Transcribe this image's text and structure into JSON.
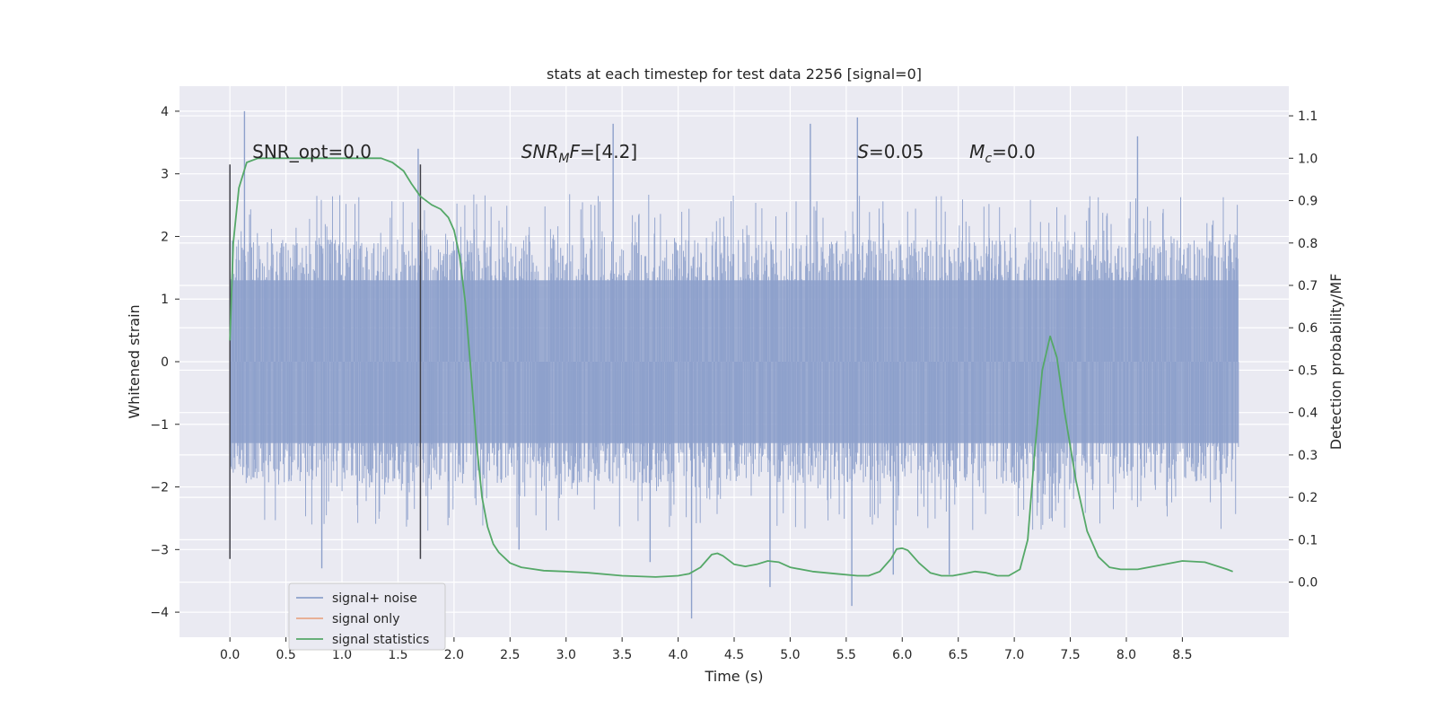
{
  "chart_data": {
    "type": "line",
    "title": "stats at each timestep for test data 2256 [signal=0]",
    "xlabel": "Time (s)",
    "ylabel": "Whitened strain",
    "y2label": "Detection probability/MF",
    "xlim": [
      -0.45,
      9.45
    ],
    "ylim": [
      -4.4,
      4.4
    ],
    "y2lim": [
      -0.13,
      1.17
    ],
    "xticks": [
      0.0,
      0.5,
      1.0,
      1.5,
      2.0,
      2.5,
      3.0,
      3.5,
      4.0,
      4.5,
      5.0,
      5.5,
      6.0,
      6.5,
      7.0,
      7.5,
      8.0,
      8.5
    ],
    "xtick_labels": [
      "0.0",
      "0.5",
      "1.0",
      "1.5",
      "2.0",
      "2.5",
      "3.0",
      "3.5",
      "4.0",
      "4.5",
      "5.0",
      "5.5",
      "6.0",
      "6.5",
      "7.0",
      "7.5",
      "8.0",
      "8.5"
    ],
    "yticks": [
      -4,
      -3,
      -2,
      -1,
      0,
      1,
      2,
      3,
      4
    ],
    "ytick_labels": [
      "−4",
      "−3",
      "−2",
      "−1",
      "0",
      "1",
      "2",
      "3",
      "4"
    ],
    "y2ticks": [
      0.0,
      0.1,
      0.2,
      0.3,
      0.4,
      0.5,
      0.6,
      0.7,
      0.8,
      0.9,
      1.0,
      1.1
    ],
    "y2tick_labels": [
      "0.0",
      "0.1",
      "0.2",
      "0.3",
      "0.4",
      "0.5",
      "0.6",
      "0.7",
      "0.8",
      "0.9",
      "1.0",
      "1.1"
    ],
    "grid": true,
    "legend_position": "lower-left",
    "series": [
      {
        "name": "signal+ noise",
        "color": "#8da0cb",
        "axis": "left",
        "x_range": [
          0.0,
          9.0
        ],
        "core_amplitude": 1.3,
        "typical_envelope": 1.9,
        "peaks": [
          {
            "x": 0.13,
            "y": 4.0
          },
          {
            "x": 0.82,
            "y": -3.3
          },
          {
            "x": 1.68,
            "y": 3.4
          },
          {
            "x": 2.58,
            "y": -3.0
          },
          {
            "x": 3.42,
            "y": 3.8
          },
          {
            "x": 3.75,
            "y": -3.2
          },
          {
            "x": 4.12,
            "y": -4.1
          },
          {
            "x": 4.82,
            "y": -3.6
          },
          {
            "x": 5.18,
            "y": 3.8
          },
          {
            "x": 5.55,
            "y": -3.9
          },
          {
            "x": 5.6,
            "y": 3.9
          },
          {
            "x": 5.92,
            "y": -3.4
          },
          {
            "x": 6.42,
            "y": -3.4
          },
          {
            "x": 8.1,
            "y": 3.6
          }
        ]
      },
      {
        "name": "signal only",
        "color": "#e8a888",
        "axis": "left",
        "x": [],
        "y": []
      },
      {
        "name": "signal statistics",
        "color": "#55a868",
        "axis": "right",
        "x": [
          0.0,
          0.03,
          0.08,
          0.15,
          0.25,
          0.4,
          0.6,
          0.8,
          1.0,
          1.2,
          1.35,
          1.45,
          1.55,
          1.62,
          1.7,
          1.8,
          1.88,
          1.95,
          2.0,
          2.05,
          2.1,
          2.15,
          2.2,
          2.25,
          2.3,
          2.35,
          2.4,
          2.5,
          2.6,
          2.8,
          3.0,
          3.2,
          3.5,
          3.8,
          4.0,
          4.1,
          4.2,
          4.3,
          4.35,
          4.4,
          4.5,
          4.6,
          4.7,
          4.8,
          4.9,
          5.0,
          5.2,
          5.4,
          5.6,
          5.7,
          5.8,
          5.9,
          5.95,
          6.0,
          6.05,
          6.15,
          6.25,
          6.35,
          6.45,
          6.55,
          6.65,
          6.75,
          6.85,
          6.95,
          7.05,
          7.12,
          7.18,
          7.25,
          7.32,
          7.38,
          7.45,
          7.55,
          7.65,
          7.75,
          7.85,
          7.95,
          8.1,
          8.3,
          8.5,
          8.7,
          8.9,
          8.95
        ],
        "y": [
          0.57,
          0.8,
          0.93,
          0.99,
          1.0,
          1.0,
          1.0,
          1.0,
          1.0,
          1.0,
          1.0,
          0.99,
          0.97,
          0.94,
          0.91,
          0.89,
          0.88,
          0.86,
          0.83,
          0.77,
          0.66,
          0.5,
          0.33,
          0.2,
          0.13,
          0.09,
          0.07,
          0.045,
          0.035,
          0.027,
          0.025,
          0.022,
          0.015,
          0.012,
          0.015,
          0.02,
          0.035,
          0.065,
          0.068,
          0.062,
          0.042,
          0.037,
          0.042,
          0.05,
          0.047,
          0.035,
          0.025,
          0.02,
          0.015,
          0.015,
          0.025,
          0.055,
          0.078,
          0.08,
          0.075,
          0.045,
          0.022,
          0.015,
          0.015,
          0.02,
          0.025,
          0.022,
          0.015,
          0.015,
          0.03,
          0.1,
          0.3,
          0.5,
          0.58,
          0.53,
          0.4,
          0.24,
          0.12,
          0.06,
          0.035,
          0.03,
          0.03,
          0.04,
          0.05,
          0.047,
          0.03,
          0.025
        ]
      }
    ],
    "vlines": [
      {
        "x": 0.0,
        "ymin": -3.15,
        "ymax": 3.15
      },
      {
        "x": 1.7,
        "ymin": -3.15,
        "ymax": 3.15
      }
    ],
    "annotations": [
      {
        "id": "snr-opt",
        "x": 0.2,
        "y": 3.25,
        "parts": [
          {
            "t": "SNR_opt=0.0",
            "style": "normal"
          }
        ]
      },
      {
        "id": "snr-mf",
        "x": 2.6,
        "y": 3.25,
        "parts": [
          {
            "t": "SNR",
            "style": "italic"
          },
          {
            "t": "M",
            "style": "italic-sub"
          },
          {
            "t": "F",
            "style": "italic"
          },
          {
            "t": "=[4.2]",
            "style": "normal"
          }
        ]
      },
      {
        "id": "s-value",
        "x": 5.6,
        "y": 3.25,
        "parts": [
          {
            "t": "S",
            "style": "italic"
          },
          {
            "t": "=0.05",
            "style": "normal"
          }
        ]
      },
      {
        "id": "mc-value",
        "x": 6.6,
        "y": 3.25,
        "parts": [
          {
            "t": "M",
            "style": "italic"
          },
          {
            "t": "c",
            "style": "italic-sub"
          },
          {
            "t": "=0.0",
            "style": "normal"
          }
        ]
      }
    ],
    "colors": {
      "plot_background": "#eaeaf2",
      "grid": "#ffffff",
      "vline": "#404048"
    }
  }
}
